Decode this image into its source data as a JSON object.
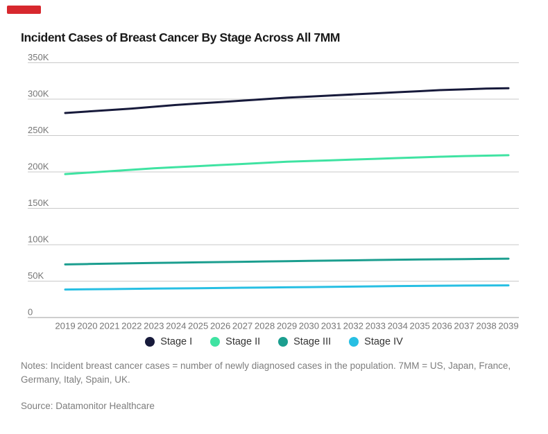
{
  "marker": {
    "color": "#d7282e"
  },
  "header": {
    "title": "Incident Cases of Breast Cancer By Stage Across All 7MM"
  },
  "legend": [
    {
      "label": "Stage I",
      "color": "#171a3b"
    },
    {
      "label": "Stage II",
      "color": "#3fe3a2"
    },
    {
      "label": "Stage III",
      "color": "#1b9e8f"
    },
    {
      "label": "Stage IV",
      "color": "#27bfe3"
    }
  ],
  "footer": {
    "notes": "Notes: Incident breast cancer cases = number of newly diagnosed cases in the population. 7MM = US, Japan, France, Germany, Italy, Spain, UK.",
    "source": "Source: Datamonitor Healthcare"
  },
  "chart_data": {
    "type": "line",
    "title": "Incident Cases of Breast Cancer By Stage Across All 7MM",
    "xlabel": "",
    "ylabel": "",
    "x": [
      2019,
      2020,
      2021,
      2022,
      2023,
      2024,
      2025,
      2026,
      2027,
      2028,
      2029,
      2030,
      2031,
      2032,
      2033,
      2034,
      2035,
      2036,
      2037,
      2038,
      2039
    ],
    "series": [
      {
        "name": "Stage I",
        "color": "#171a3b",
        "values": [
          281000,
          283000,
          285000,
          287000,
          289500,
          292000,
          294000,
          296000,
          298000,
          300000,
          302000,
          303500,
          305000,
          306500,
          308000,
          309500,
          311000,
          312500,
          313500,
          314500,
          315000
        ]
      },
      {
        "name": "Stage II",
        "color": "#3fe3a2",
        "values": [
          197000,
          199000,
          201000,
          203000,
          205000,
          206500,
          208000,
          209500,
          211000,
          212500,
          214000,
          215000,
          216000,
          217000,
          218000,
          219000,
          220000,
          221000,
          221800,
          222400,
          223000
        ]
      },
      {
        "name": "Stage III",
        "color": "#1b9e8f",
        "values": [
          73000,
          73500,
          74000,
          74500,
          75000,
          75400,
          75800,
          76200,
          76600,
          77000,
          77400,
          77800,
          78200,
          78600,
          79000,
          79400,
          79700,
          80000,
          80300,
          80600,
          80800
        ]
      },
      {
        "name": "Stage IV",
        "color": "#27bfe3",
        "values": [
          38500,
          38800,
          39100,
          39400,
          39700,
          40000,
          40300,
          40600,
          40900,
          41200,
          41500,
          41800,
          42100,
          42500,
          42900,
          43200,
          43500,
          43700,
          43900,
          44100,
          44200
        ]
      }
    ],
    "ylim": [
      0,
      350000
    ],
    "yticks": [
      0,
      50000,
      100000,
      150000,
      200000,
      250000,
      300000,
      350000
    ],
    "ytick_labels": [
      "0",
      "50K",
      "100K",
      "150K",
      "200K",
      "250K",
      "300K",
      "350K"
    ],
    "grid": true,
    "legend_position": "bottom",
    "colors": {
      "gridline": "#c9c9c9",
      "zero_line": "#9e9e9e",
      "axis_text": "#767676"
    }
  }
}
